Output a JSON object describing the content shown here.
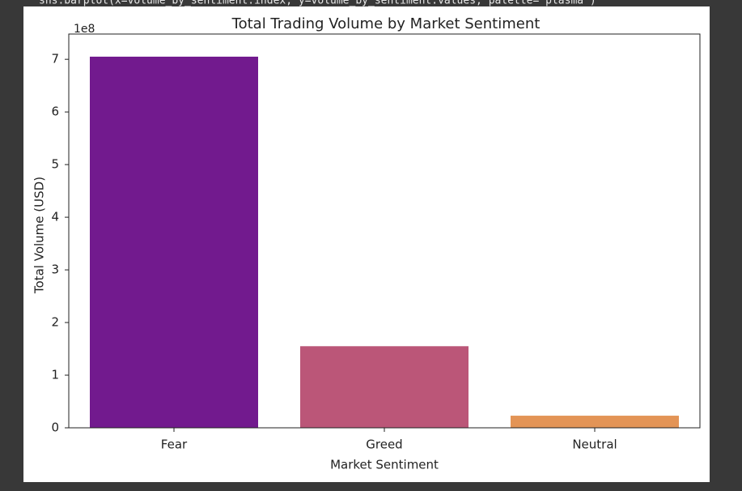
{
  "code_line": "sns.barplot(x=volume_by_sentiment.index, y=volume_by_sentiment.values, palette='plasma')",
  "chart_data": {
    "type": "bar",
    "title": "Total Trading Volume by Market Sentiment",
    "x_label": "Market Sentiment",
    "y_label": "Total Volume (USD)",
    "y_offset_label": "1e8",
    "categories": [
      "Fear",
      "Greed",
      "Neutral"
    ],
    "values": [
      705000000,
      155000000,
      23000000
    ],
    "colors": [
      "#721a8e",
      "#bb5678",
      "#e39456"
    ],
    "ylim": [
      0,
      748000000
    ],
    "yticks": [
      0,
      {
        "value": 100000000,
        "label": "1"
      },
      {
        "value": 200000000,
        "label": "2"
      },
      {
        "value": 300000000,
        "label": "3"
      },
      {
        "value": 400000000,
        "label": "4"
      },
      {
        "value": 500000000,
        "label": "5"
      },
      {
        "value": 600000000,
        "label": "6"
      },
      {
        "value": 700000000,
        "label": "7"
      }
    ],
    "grid": false
  }
}
